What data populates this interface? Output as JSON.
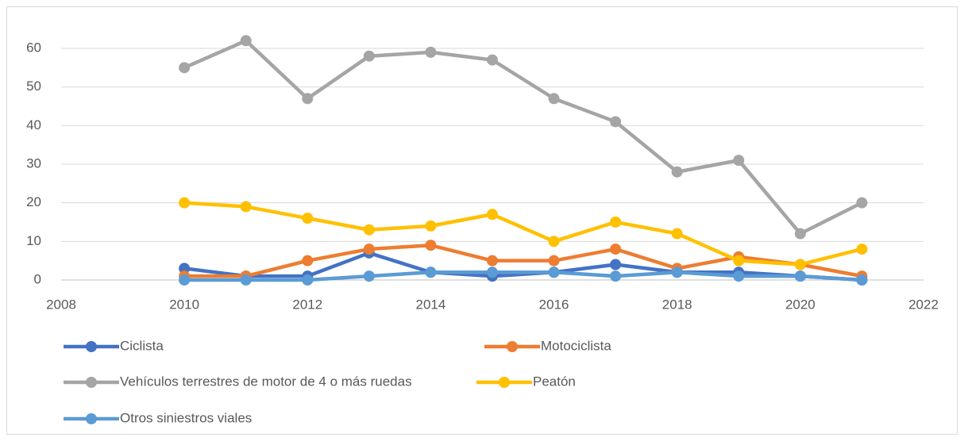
{
  "chart_data": {
    "type": "line",
    "x": [
      2010,
      2011,
      2012,
      2013,
      2014,
      2015,
      2016,
      2017,
      2018,
      2019,
      2020,
      2021
    ],
    "series": [
      {
        "name": "Ciclista",
        "color": "#4472c4",
        "values": [
          3,
          1,
          1,
          7,
          2,
          1,
          2,
          4,
          2,
          2,
          1,
          0
        ]
      },
      {
        "name": "Motociclista",
        "color": "#ed7d31",
        "values": [
          1,
          1,
          5,
          8,
          9,
          5,
          5,
          8,
          3,
          6,
          4,
          1
        ]
      },
      {
        "name": "Vehículos terrestres de motor de 4 o más ruedas",
        "color": "#a5a5a5",
        "values": [
          55,
          62,
          47,
          58,
          59,
          57,
          47,
          41,
          28,
          31,
          12,
          20
        ]
      },
      {
        "name": "Peatón",
        "color": "#ffc000",
        "values": [
          20,
          19,
          16,
          13,
          14,
          17,
          10,
          15,
          12,
          5,
          4,
          8
        ]
      },
      {
        "name": "Otros siniestros viales",
        "color": "#5b9bd5",
        "values": [
          0,
          0,
          0,
          1,
          2,
          2,
          2,
          1,
          2,
          1,
          1,
          0
        ]
      }
    ],
    "xlim": [
      2008,
      2022
    ],
    "xticks": [
      2008,
      2010,
      2012,
      2014,
      2016,
      2018,
      2020,
      2022
    ],
    "ylim": [
      0,
      60
    ],
    "yticks": [
      0,
      10,
      20,
      30,
      40,
      50,
      60
    ],
    "grid": true,
    "legend": "bottom"
  }
}
